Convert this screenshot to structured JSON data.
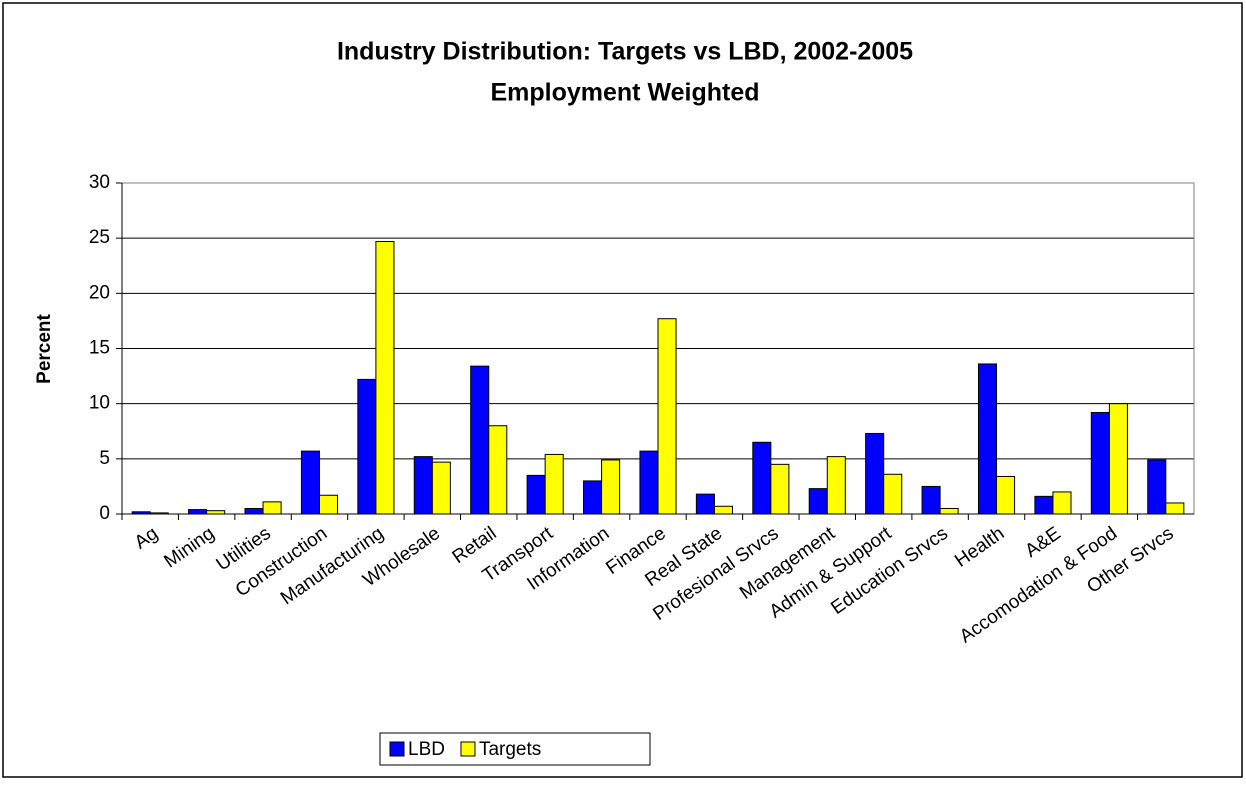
{
  "chart_data": {
    "type": "bar",
    "title": "Industry Distribution: Targets vs LBD, 2002-2005",
    "subtitle": "Employment Weighted",
    "y_label": "Percent",
    "categories": [
      "Ag",
      "Mining",
      "Utilities",
      "Construction",
      "Manufacturing",
      "Wholesale",
      "Retail",
      "Transport",
      "Information",
      "Finance",
      "Real State",
      "Profesional Srvcs",
      "Management",
      "Admin & Support",
      "Education Srvcs",
      "Health",
      "A&E",
      "Accomodation & Food",
      "Other Srvcs"
    ],
    "series": [
      {
        "name": "LBD",
        "color": "#0000ff",
        "values": [
          0.2,
          0.4,
          0.5,
          5.7,
          12.2,
          5.2,
          13.4,
          3.5,
          3.0,
          5.7,
          1.8,
          6.5,
          2.3,
          7.3,
          2.5,
          13.6,
          1.6,
          9.2,
          4.9
        ]
      },
      {
        "name": "Targets",
        "color": "#ffff00",
        "values": [
          0.1,
          0.3,
          1.1,
          1.7,
          24.7,
          4.7,
          8.0,
          5.4,
          4.9,
          17.7,
          0.7,
          4.5,
          5.2,
          3.6,
          0.5,
          3.4,
          2.0,
          10.0,
          1.0
        ]
      }
    ],
    "ylim": [
      0,
      30
    ],
    "yticks": [
      0,
      5,
      10,
      15,
      20,
      25,
      30
    ],
    "grid": true,
    "legend": "bottom"
  }
}
